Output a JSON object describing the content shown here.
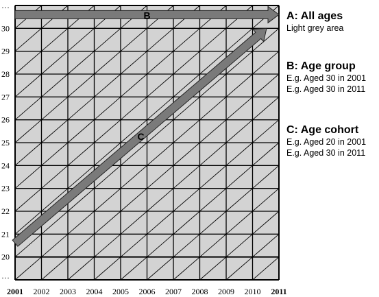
{
  "diagram": {
    "years": [
      "2001",
      "2002",
      "2003",
      "2004",
      "2005",
      "2006",
      "2007",
      "2008",
      "2009",
      "2010",
      "2011"
    ],
    "ages": [
      "…",
      "20",
      "21",
      "22",
      "23",
      "24",
      "25",
      "26",
      "27",
      "28",
      "29",
      "30",
      "…"
    ],
    "arrows": [
      {
        "label": "B",
        "from": {
          "year": 2001,
          "age": 30.6
        },
        "to": {
          "year": 2011,
          "age": 30.6
        }
      },
      {
        "label": "C",
        "from": {
          "year": 2001,
          "age": 20.6
        },
        "to": {
          "year": 2011,
          "age": 30.0
        }
      }
    ],
    "colors": {
      "area": "#d3d3d3",
      "grid": "#000000",
      "arrow": "#7a7a7a"
    }
  },
  "legend": {
    "a": {
      "title": "A: All ages",
      "lines": [
        "Light grey area"
      ]
    },
    "b": {
      "title": "B: Age group",
      "lines": [
        "E.g. Aged 30 in 2001",
        "E.g. Aged 30 in 2011"
      ]
    },
    "c": {
      "title": "C: Age cohort",
      "lines": [
        "E.g. Aged 20 in 2001",
        "E.g. Aged 30 in 2011"
      ]
    }
  }
}
